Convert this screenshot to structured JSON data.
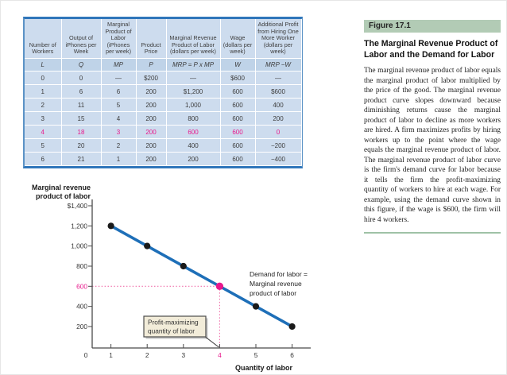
{
  "theme": {
    "table_border": "#5b93c6",
    "table_border_dark": "#2f76ba",
    "table_cell_bg": "#cddcee",
    "table_symbol_bg": "#bfd3e8",
    "highlight_pink": "#e8188c",
    "accent_green": "#b2cbb5"
  },
  "figure_panel": {
    "kicker": "Figure 17.1",
    "title": "The Marginal Revenue Product of Labor and the Demand for Labor",
    "body": "The marginal revenue product of labor equals the marginal product of labor multiplied by the price of the good. The marginal revenue product curve slopes downward because diminishing returns cause the marginal product of labor to decline as more workers are hired. A firm maximizes profits by hiring workers up to the point where the wage equals the marginal revenue product of labor. The marginal revenue product of labor curve is the firm's demand curve for labor because it tells the firm the profit-maximizing quantity of workers to hire at each wage. For example, using the demand curve shown in this figure, if the wage is $600, the firm will hire 4 workers."
  },
  "table": {
    "headers": [
      "Number of Workers",
      "Output of iPhones per Week",
      "Marginal Product of Labor (iPhones per week)",
      "Product Price",
      "Marginal Revenue Product of Labor (dollars per week)",
      "Wage (dollars per week)",
      "Additional Profit from Hiring One More Worker (dollars per week)"
    ],
    "symbols": [
      "L",
      "Q",
      "MP",
      "P",
      "MRP = P x MP",
      "W",
      "MRP −W"
    ],
    "rows": [
      [
        "0",
        "0",
        "—",
        "$200",
        "—",
        "$600",
        "—"
      ],
      [
        "1",
        "6",
        "6",
        "200",
        "$1,200",
        "600",
        "$600"
      ],
      [
        "2",
        "11",
        "5",
        "200",
        "1,000",
        "600",
        "400"
      ],
      [
        "3",
        "15",
        "4",
        "200",
        "800",
        "600",
        "200"
      ],
      [
        "4",
        "18",
        "3",
        "200",
        "600",
        "600",
        "0"
      ],
      [
        "5",
        "20",
        "2",
        "200",
        "400",
        "600",
        "−200"
      ],
      [
        "6",
        "21",
        "1",
        "200",
        "200",
        "600",
        "−400"
      ]
    ],
    "highlight_row_index": 4
  },
  "chart_data": {
    "type": "line",
    "title": "",
    "xlabel": "Quantity of labor",
    "ylabel": "Marginal revenue product of labor",
    "ylabel_lines": [
      "Marginal revenue",
      "product of labor"
    ],
    "series": [
      {
        "name": "Demand for labor = Marginal revenue product of labor",
        "x": [
          1,
          2,
          3,
          4,
          5,
          6
        ],
        "y": [
          1200,
          1000,
          800,
          600,
          400,
          200
        ]
      }
    ],
    "highlight_point": {
      "x": 4,
      "y": 600
    },
    "y_ticks": [
      {
        "value": 1400,
        "label": "$1,400"
      },
      {
        "value": 1200,
        "label": "1,200"
      },
      {
        "value": 1000,
        "label": "1,000"
      },
      {
        "value": 800,
        "label": "800"
      },
      {
        "value": 600,
        "label": "600"
      },
      {
        "value": 400,
        "label": "400"
      },
      {
        "value": 200,
        "label": "200"
      }
    ],
    "x_ticks": [
      {
        "value": 1,
        "label": "1"
      },
      {
        "value": 2,
        "label": "2"
      },
      {
        "value": 3,
        "label": "3"
      },
      {
        "value": 4,
        "label": "4"
      },
      {
        "value": 5,
        "label": "5"
      },
      {
        "value": 6,
        "label": "6"
      }
    ],
    "origin_label": "0",
    "xlim": [
      0,
      6.6
    ],
    "ylim": [
      0,
      1500
    ],
    "grid": false,
    "legend_position": "none",
    "annotations": {
      "demand_label_lines": [
        "Demand for labor =",
        "Marginal revenue",
        "product of labor"
      ],
      "callout_lines": [
        "Profit-maximizing",
        "quantity of labor"
      ]
    },
    "colors": {
      "line": "#1e6fb8",
      "point": "#1a1a1a",
      "highlight": "#e8188c",
      "dotted": "#f06faa",
      "axis": "#4a4a4a",
      "callout_bg": "#f2ecd9",
      "callout_border": "#4d4d4d"
    }
  }
}
